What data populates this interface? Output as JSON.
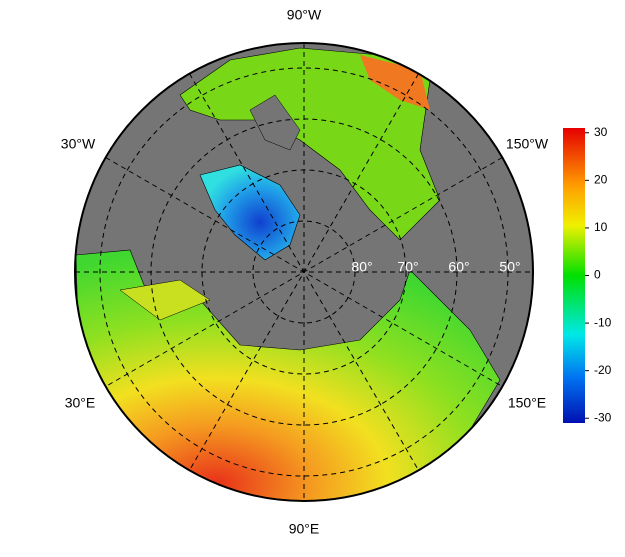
{
  "map": {
    "longitude_labels": [
      "90°W",
      "30°W",
      "150°W",
      "30°E",
      "150°E",
      "90°E"
    ],
    "latitude_labels": [
      "80°",
      "70°",
      "60°",
      "50°"
    ]
  },
  "colorbar": {
    "lim": [
      -31,
      31
    ],
    "ticks": [
      30,
      20,
      10,
      0,
      -10,
      -20,
      -30
    ]
  }
}
